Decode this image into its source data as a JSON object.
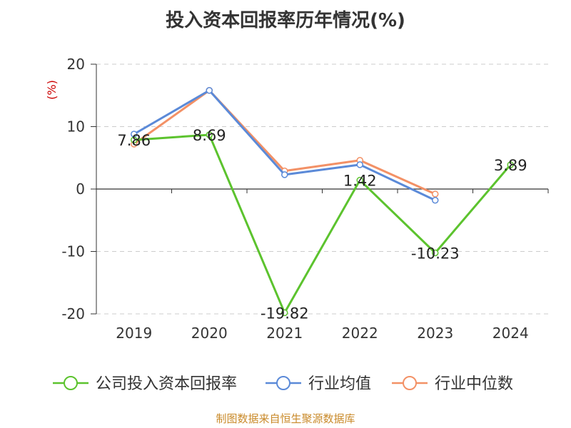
{
  "title": "投入资本回报率历年情况(%)",
  "footer": "制图数据来自恒生聚源数据库",
  "chart_data": {
    "type": "line",
    "title": "投入资本回报率历年情况(%)",
    "ylabel": "(%)",
    "xlabel": "",
    "ylim": [
      -20,
      20
    ],
    "y_ticks": [
      "20",
      "10",
      "0",
      "-10",
      "-20"
    ],
    "y_tick_values": [
      20,
      10,
      0,
      -10,
      -20
    ],
    "categories": [
      "2019",
      "2020",
      "2021",
      "2022",
      "2023",
      "2024"
    ],
    "grid": true,
    "legend_position": "bottom",
    "series": [
      {
        "name": "公司投入资本回报率",
        "color": "#5cc32e",
        "values": [
          7.86,
          8.69,
          -19.82,
          1.42,
          -10.23,
          3.89
        ],
        "labels": [
          "7.86",
          "8.69",
          "-19.82",
          "1.42",
          "-10.23",
          "3.89"
        ]
      },
      {
        "name": "行业均值",
        "color": "#5b8ad8",
        "values": [
          8.8,
          15.8,
          2.3,
          3.9,
          -1.8,
          null
        ]
      },
      {
        "name": "行业中位数",
        "color": "#f39166",
        "values": [
          7.2,
          15.8,
          2.9,
          4.6,
          -0.8,
          null
        ]
      }
    ]
  }
}
